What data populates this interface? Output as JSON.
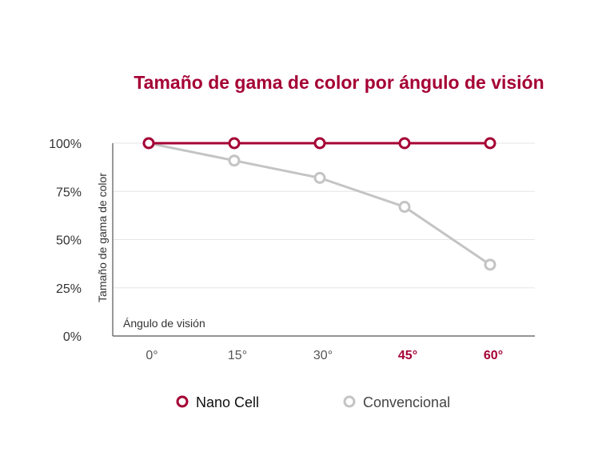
{
  "chart_data": {
    "type": "line",
    "title": "Tamaño de gama de color por ángulo de visión",
    "ylabel": "Tamaño de gama de color",
    "xlabel": "Ángulo de visión",
    "categories": [
      "0°",
      "15°",
      "30°",
      "45°",
      "60°"
    ],
    "highlighted_categories": [
      "45°",
      "60°"
    ],
    "y_ticks": [
      "0%",
      "25%",
      "50%",
      "75%",
      "100%"
    ],
    "y_tick_values": [
      0,
      25,
      50,
      75,
      100
    ],
    "ylim": [
      0,
      100
    ],
    "grid": true,
    "legend_position": "bottom",
    "series": [
      {
        "name": "Nano Cell",
        "values": [
          100,
          100,
          100,
          100,
          100
        ],
        "color": "#A50034"
      },
      {
        "name": "Convencional",
        "values": [
          100,
          91,
          82,
          67,
          37
        ],
        "color": "#C4C4C4"
      }
    ]
  },
  "colors": {
    "title": "#A50034",
    "grid": "#E6E6E6",
    "axis": "#555555",
    "legend_text_primary": "#111111",
    "legend_text_secondary": "#444444"
  }
}
